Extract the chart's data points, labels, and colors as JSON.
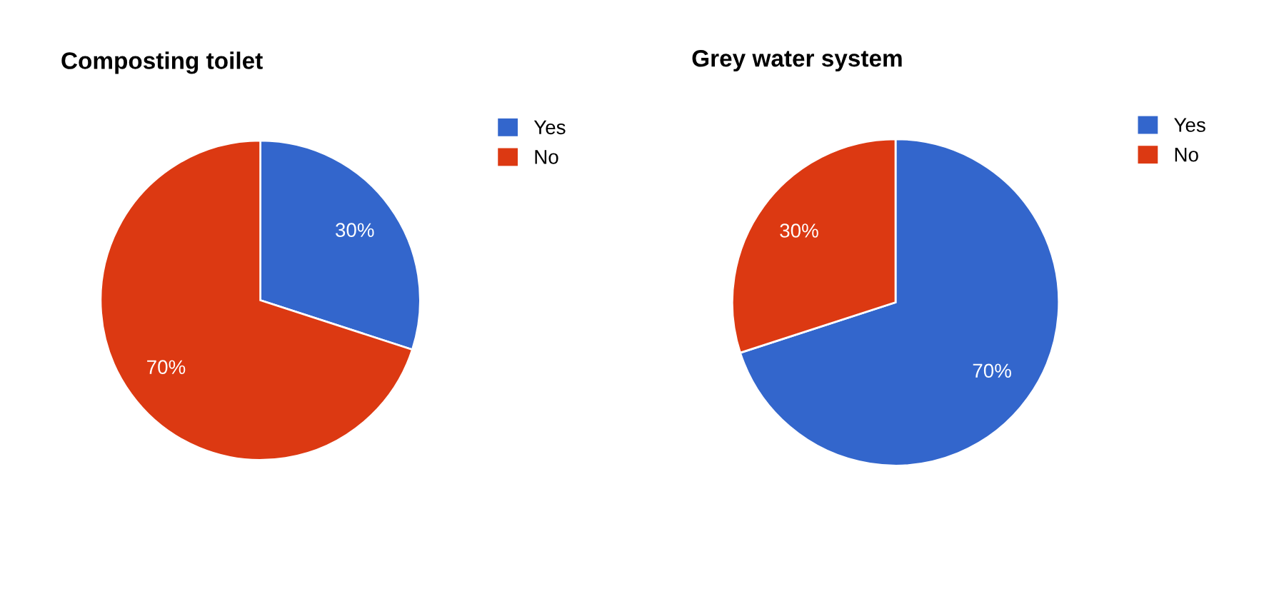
{
  "chart_data": [
    {
      "type": "pie",
      "title": "Composting toilet",
      "categories": [
        "Yes",
        "No"
      ],
      "values": [
        30,
        70
      ],
      "value_labels": [
        "30%",
        "70%"
      ],
      "colors": [
        "#3366cc",
        "#dc3912"
      ],
      "legend": "top right"
    },
    {
      "type": "pie",
      "title": "Grey water system",
      "categories": [
        "Yes",
        "No"
      ],
      "values": [
        70,
        30
      ],
      "value_labels": [
        "70%",
        "30%"
      ],
      "colors": [
        "#3366cc",
        "#dc3912"
      ],
      "legend": "top right"
    }
  ]
}
